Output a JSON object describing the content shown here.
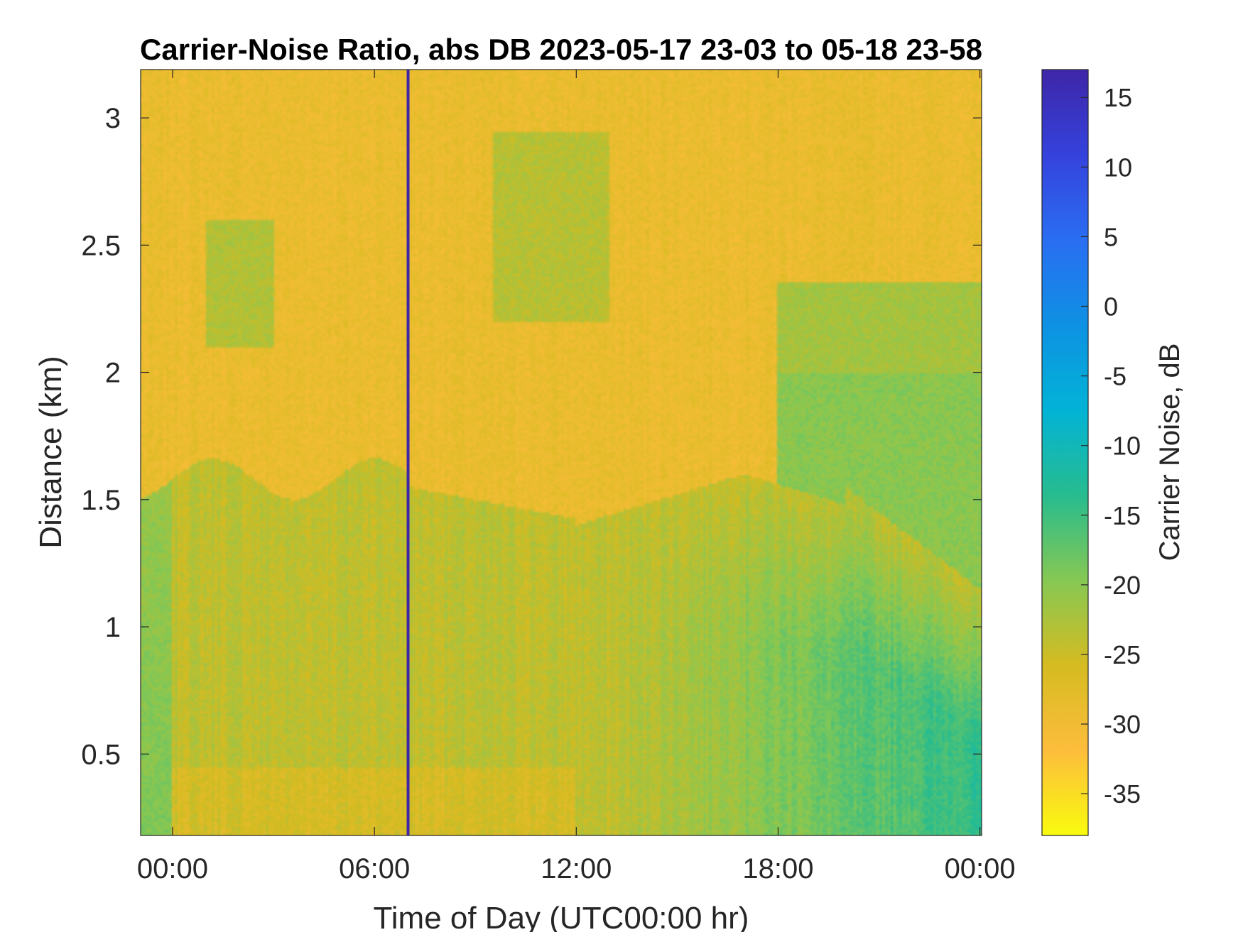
{
  "chart_data": {
    "type": "heatmap",
    "title": "Carrier-Noise Ratio, abs DB 2023-05-17 23-03 to 05-18 23-58",
    "xlabel": "Time of Day (UTC00:00 hr)",
    "ylabel": "Distance (km)",
    "x_ticks": [
      "00:00",
      "06:00",
      "12:00",
      "18:00",
      "00:00"
    ],
    "x_tick_hours": [
      0,
      6,
      12,
      18,
      24
    ],
    "xlim_hours": [
      -0.95,
      24.05
    ],
    "y_ticks": [
      "0.5",
      "1",
      "1.5",
      "2",
      "2.5",
      "3"
    ],
    "y_tick_values": [
      0.5,
      1,
      1.5,
      2,
      2.5,
      3
    ],
    "ylim": [
      0.18,
      3.19
    ],
    "colorbar": {
      "label": "Carrier Noise, dB",
      "ticks": [
        "15",
        "10",
        "5",
        "0",
        "-5",
        "-10",
        "-15",
        "-20",
        "-25",
        "-30",
        "-35"
      ],
      "tick_values": [
        15,
        10,
        5,
        0,
        -5,
        -10,
        -15,
        -20,
        -25,
        -30,
        -35
      ],
      "clim": [
        -38,
        17
      ],
      "colormap": "parula (reversed)",
      "stops": [
        "#f9fb0e",
        "#fdbd3c",
        "#d5bb21",
        "#86c853",
        "#27bc8f",
        "#02b3d6",
        "#0e91e3",
        "#2a6ef2",
        "#3542dc",
        "#3e26a8"
      ]
    },
    "features": [
      {
        "label": "vertical stripe at ~07:00",
        "value_db": 17
      },
      {
        "label": "near-range cells below ~1.6 km",
        "value_db": [
          -22,
          -10
        ]
      },
      {
        "label": "upper range above ~1.6 km",
        "value_db": [
          -32,
          -22
        ]
      }
    ]
  }
}
